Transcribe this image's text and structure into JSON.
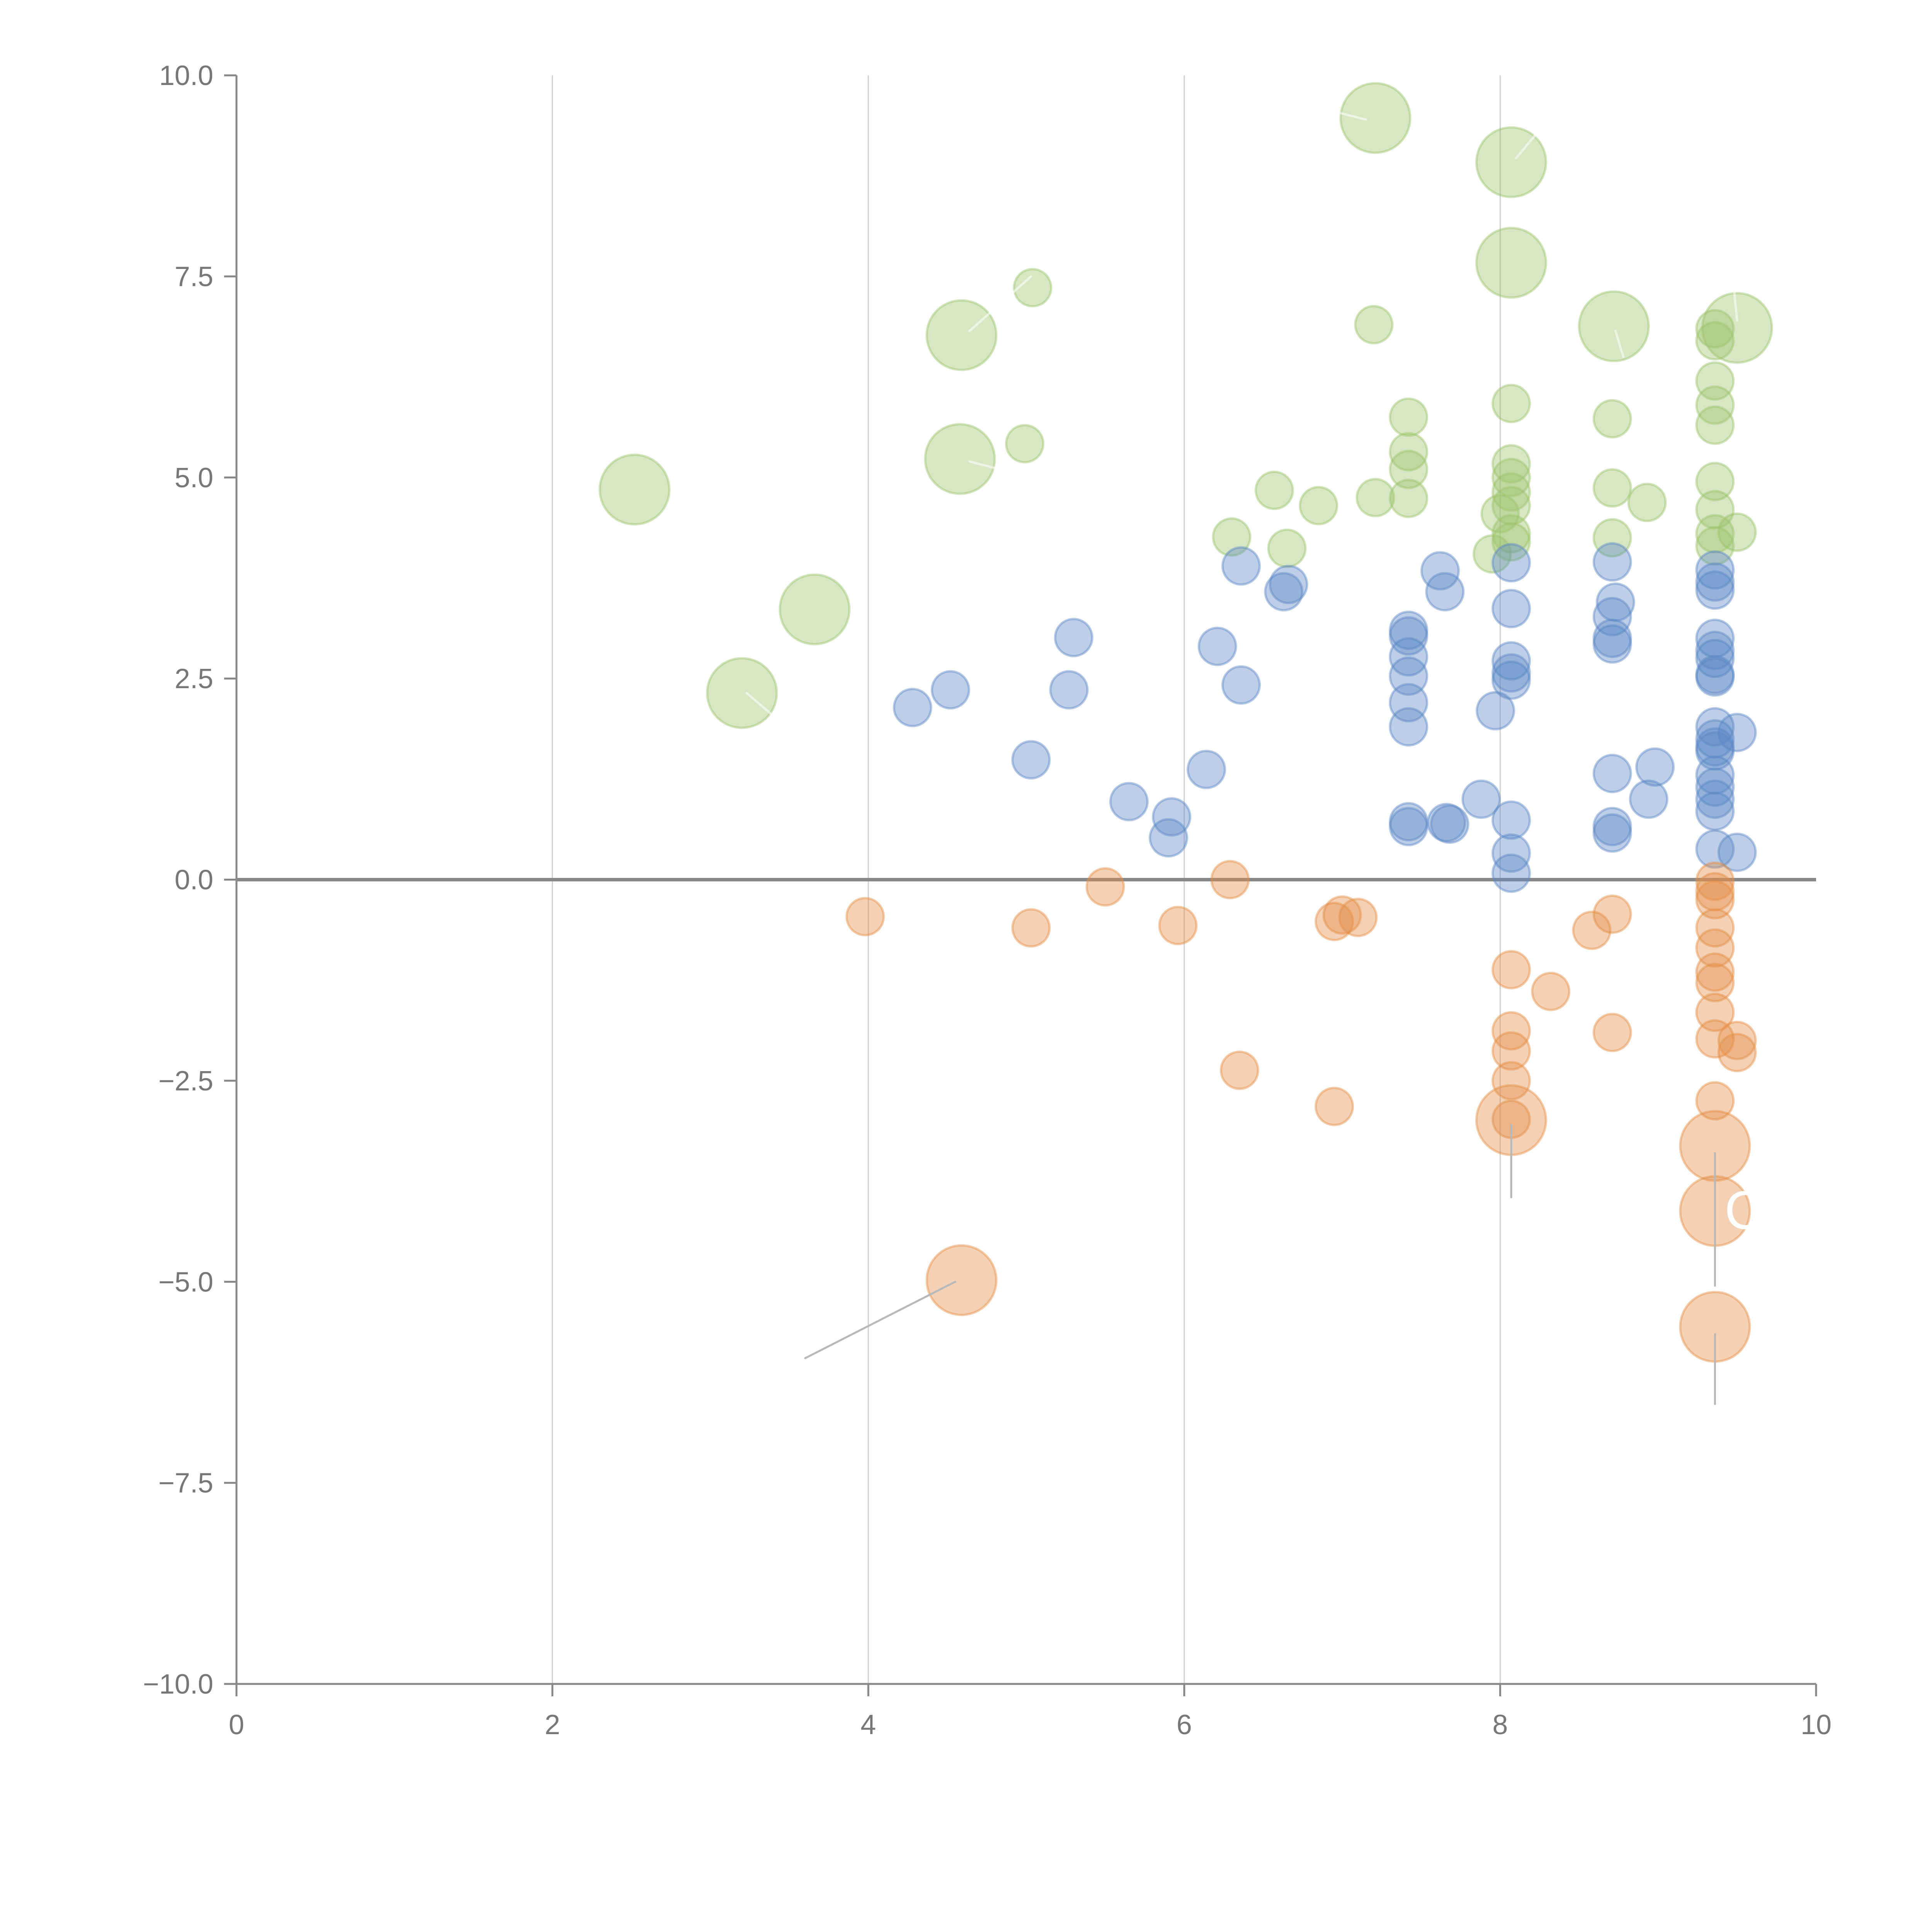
{
  "chart_data": {
    "type": "scatter",
    "title": "",
    "xlabel": "",
    "ylabel": "",
    "xlim": [
      0,
      10
    ],
    "ylim": [
      -10,
      10
    ],
    "x_ticks": [
      "0",
      "2",
      "4",
      "6",
      "8",
      "10"
    ],
    "x_tick_values": [
      0,
      2,
      4,
      6,
      8,
      10
    ],
    "y_ticks": [
      "10.0",
      "7.5",
      "5.0",
      "2.5",
      "0.0",
      "−2.5",
      "−5.0",
      "−7.5",
      "−10.0"
    ],
    "y_tick_values": [
      10,
      7.5,
      5,
      2.5,
      0,
      -2.5,
      -5,
      -7.5,
      -10
    ],
    "grid": "vertical",
    "zero_line": true,
    "legend": "none",
    "colors": {
      "green": "#9cc36b",
      "blue": "#5b87c5",
      "orange": "#e48d45"
    },
    "series": [
      {
        "name": "green",
        "color_key": "green",
        "points": [
          {
            "x": 7.21,
            "y": 9.47,
            "size": 3
          },
          {
            "x": 8.07,
            "y": 8.92,
            "size": 3
          },
          {
            "x": 8.07,
            "y": 7.67,
            "size": 3
          },
          {
            "x": 8.72,
            "y": 6.88,
            "size": 3
          },
          {
            "x": 9.5,
            "y": 6.86,
            "size": 3
          },
          {
            "x": 4.59,
            "y": 6.77,
            "size": 3
          },
          {
            "x": 4.58,
            "y": 5.23,
            "size": 3
          },
          {
            "x": 2.52,
            "y": 4.85,
            "size": 3
          },
          {
            "x": 3.66,
            "y": 3.36,
            "size": 3
          },
          {
            "x": 3.2,
            "y": 2.32,
            "size": 3
          },
          {
            "x": 5.04,
            "y": 7.36,
            "size": 1
          },
          {
            "x": 7.2,
            "y": 6.9,
            "size": 1
          },
          {
            "x": 9.36,
            "y": 6.85,
            "size": 1
          },
          {
            "x": 9.36,
            "y": 6.7,
            "size": 1
          },
          {
            "x": 9.36,
            "y": 6.2,
            "size": 1
          },
          {
            "x": 8.07,
            "y": 5.92,
            "size": 1
          },
          {
            "x": 9.36,
            "y": 5.9,
            "size": 1
          },
          {
            "x": 9.36,
            "y": 5.65,
            "size": 1
          },
          {
            "x": 7.42,
            "y": 5.75,
            "size": 1
          },
          {
            "x": 8.71,
            "y": 5.73,
            "size": 1
          },
          {
            "x": 4.99,
            "y": 5.42,
            "size": 1
          },
          {
            "x": 7.42,
            "y": 5.32,
            "size": 1
          },
          {
            "x": 8.07,
            "y": 5.17,
            "size": 1
          },
          {
            "x": 7.42,
            "y": 5.1,
            "size": 1
          },
          {
            "x": 8.07,
            "y": 5.0,
            "size": 1
          },
          {
            "x": 9.36,
            "y": 4.95,
            "size": 1
          },
          {
            "x": 8.07,
            "y": 4.82,
            "size": 1
          },
          {
            "x": 6.57,
            "y": 4.84,
            "size": 1
          },
          {
            "x": 8.71,
            "y": 4.87,
            "size": 1
          },
          {
            "x": 6.85,
            "y": 4.65,
            "size": 1
          },
          {
            "x": 8.07,
            "y": 4.65,
            "size": 1
          },
          {
            "x": 8.93,
            "y": 4.69,
            "size": 1
          },
          {
            "x": 9.36,
            "y": 4.6,
            "size": 1
          },
          {
            "x": 7.21,
            "y": 4.75,
            "size": 1
          },
          {
            "x": 7.42,
            "y": 4.74,
            "size": 1
          },
          {
            "x": 8.0,
            "y": 4.55,
            "size": 1
          },
          {
            "x": 8.07,
            "y": 4.3,
            "size": 1
          },
          {
            "x": 9.36,
            "y": 4.3,
            "size": 1
          },
          {
            "x": 9.5,
            "y": 4.32,
            "size": 1
          },
          {
            "x": 6.3,
            "y": 4.26,
            "size": 1
          },
          {
            "x": 8.71,
            "y": 4.25,
            "size": 1
          },
          {
            "x": 8.07,
            "y": 4.2,
            "size": 1
          },
          {
            "x": 9.36,
            "y": 4.15,
            "size": 1
          },
          {
            "x": 6.65,
            "y": 4.12,
            "size": 1
          },
          {
            "x": 7.95,
            "y": 4.05,
            "size": 1
          }
        ]
      },
      {
        "name": "blue",
        "color_key": "blue",
        "points": [
          {
            "x": 6.36,
            "y": 3.9,
            "size": 1
          },
          {
            "x": 7.62,
            "y": 3.84,
            "size": 1
          },
          {
            "x": 8.71,
            "y": 3.95,
            "size": 1
          },
          {
            "x": 8.07,
            "y": 3.94,
            "size": 1
          },
          {
            "x": 9.36,
            "y": 3.85,
            "size": 1
          },
          {
            "x": 9.36,
            "y": 3.7,
            "size": 1
          },
          {
            "x": 9.36,
            "y": 3.6,
            "size": 1
          },
          {
            "x": 6.66,
            "y": 3.67,
            "size": 1
          },
          {
            "x": 6.63,
            "y": 3.58,
            "size": 1
          },
          {
            "x": 7.65,
            "y": 3.58,
            "size": 1
          },
          {
            "x": 8.73,
            "y": 3.45,
            "size": 1
          },
          {
            "x": 8.07,
            "y": 3.37,
            "size": 1
          },
          {
            "x": 8.71,
            "y": 3.27,
            "size": 1
          },
          {
            "x": 7.42,
            "y": 3.1,
            "size": 1
          },
          {
            "x": 7.42,
            "y": 3.03,
            "size": 1
          },
          {
            "x": 5.3,
            "y": 3.01,
            "size": 1
          },
          {
            "x": 8.71,
            "y": 3.0,
            "size": 1
          },
          {
            "x": 9.36,
            "y": 3.0,
            "size": 1
          },
          {
            "x": 8.71,
            "y": 2.93,
            "size": 1
          },
          {
            "x": 6.21,
            "y": 2.9,
            "size": 1
          },
          {
            "x": 9.36,
            "y": 2.85,
            "size": 1
          },
          {
            "x": 7.42,
            "y": 2.77,
            "size": 1
          },
          {
            "x": 9.36,
            "y": 2.75,
            "size": 1
          },
          {
            "x": 8.07,
            "y": 2.72,
            "size": 1
          },
          {
            "x": 9.36,
            "y": 2.55,
            "size": 1
          },
          {
            "x": 7.42,
            "y": 2.53,
            "size": 1
          },
          {
            "x": 8.07,
            "y": 2.57,
            "size": 1
          },
          {
            "x": 8.07,
            "y": 2.48,
            "size": 1
          },
          {
            "x": 9.36,
            "y": 2.52,
            "size": 1
          },
          {
            "x": 6.36,
            "y": 2.42,
            "size": 1
          },
          {
            "x": 4.52,
            "y": 2.36,
            "size": 1
          },
          {
            "x": 5.27,
            "y": 2.36,
            "size": 1
          },
          {
            "x": 7.42,
            "y": 2.2,
            "size": 1
          },
          {
            "x": 4.28,
            "y": 2.14,
            "size": 1
          },
          {
            "x": 7.97,
            "y": 2.1,
            "size": 1
          },
          {
            "x": 7.42,
            "y": 1.9,
            "size": 1
          },
          {
            "x": 9.36,
            "y": 1.9,
            "size": 1
          },
          {
            "x": 9.5,
            "y": 1.83,
            "size": 1
          },
          {
            "x": 9.36,
            "y": 1.75,
            "size": 1
          },
          {
            "x": 9.36,
            "y": 1.65,
            "size": 1
          },
          {
            "x": 9.36,
            "y": 1.6,
            "size": 1
          },
          {
            "x": 5.03,
            "y": 1.49,
            "size": 1
          },
          {
            "x": 8.98,
            "y": 1.4,
            "size": 1
          },
          {
            "x": 6.14,
            "y": 1.37,
            "size": 1
          },
          {
            "x": 8.71,
            "y": 1.32,
            "size": 1
          },
          {
            "x": 9.36,
            "y": 1.3,
            "size": 1
          },
          {
            "x": 9.36,
            "y": 1.15,
            "size": 1
          },
          {
            "x": 7.88,
            "y": 1.0,
            "size": 1
          },
          {
            "x": 8.94,
            "y": 1.0,
            "size": 1
          },
          {
            "x": 9.36,
            "y": 1.0,
            "size": 1
          },
          {
            "x": 5.65,
            "y": 0.97,
            "size": 1
          },
          {
            "x": 9.36,
            "y": 0.85,
            "size": 1
          },
          {
            "x": 5.92,
            "y": 0.78,
            "size": 1
          },
          {
            "x": 8.07,
            "y": 0.74,
            "size": 1
          },
          {
            "x": 7.42,
            "y": 0.72,
            "size": 1
          },
          {
            "x": 7.66,
            "y": 0.71,
            "size": 1
          },
          {
            "x": 7.68,
            "y": 0.69,
            "size": 1
          },
          {
            "x": 7.42,
            "y": 0.66,
            "size": 1
          },
          {
            "x": 8.71,
            "y": 0.66,
            "size": 1
          },
          {
            "x": 8.71,
            "y": 0.58,
            "size": 1
          },
          {
            "x": 5.9,
            "y": 0.52,
            "size": 1
          },
          {
            "x": 9.36,
            "y": 0.38,
            "size": 1
          },
          {
            "x": 9.5,
            "y": 0.34,
            "size": 1
          },
          {
            "x": 8.07,
            "y": 0.33,
            "size": 1
          },
          {
            "x": 8.07,
            "y": 0.08,
            "size": 1
          }
        ]
      },
      {
        "name": "orange",
        "color_key": "orange",
        "points": [
          {
            "x": 6.29,
            "y": 0.0,
            "size": 1
          },
          {
            "x": 9.36,
            "y": -0.02,
            "size": 1
          },
          {
            "x": 5.5,
            "y": -0.09,
            "size": 1
          },
          {
            "x": 9.36,
            "y": -0.15,
            "size": 1
          },
          {
            "x": 9.36,
            "y": -0.25,
            "size": 1
          },
          {
            "x": 8.71,
            "y": -0.43,
            "size": 1
          },
          {
            "x": 3.98,
            "y": -0.46,
            "size": 1
          },
          {
            "x": 7.1,
            "y": -0.47,
            "size": 1
          },
          {
            "x": 7.0,
            "y": -0.44,
            "size": 1
          },
          {
            "x": 6.95,
            "y": -0.52,
            "size": 1
          },
          {
            "x": 5.96,
            "y": -0.57,
            "size": 1
          },
          {
            "x": 5.03,
            "y": -0.6,
            "size": 1
          },
          {
            "x": 9.36,
            "y": -0.6,
            "size": 1
          },
          {
            "x": 8.58,
            "y": -0.63,
            "size": 1
          },
          {
            "x": 9.36,
            "y": -0.85,
            "size": 1
          },
          {
            "x": 8.07,
            "y": -1.12,
            "size": 1
          },
          {
            "x": 9.36,
            "y": -1.15,
            "size": 1
          },
          {
            "x": 9.36,
            "y": -1.28,
            "size": 1
          },
          {
            "x": 8.32,
            "y": -1.39,
            "size": 1
          },
          {
            "x": 9.36,
            "y": -1.65,
            "size": 1
          },
          {
            "x": 8.71,
            "y": -1.9,
            "size": 1
          },
          {
            "x": 8.07,
            "y": -1.88,
            "size": 1
          },
          {
            "x": 9.36,
            "y": -1.98,
            "size": 1
          },
          {
            "x": 9.5,
            "y": -2.0,
            "size": 1
          },
          {
            "x": 9.5,
            "y": -2.15,
            "size": 1
          },
          {
            "x": 8.07,
            "y": -2.13,
            "size": 1
          },
          {
            "x": 6.35,
            "y": -2.37,
            "size": 1
          },
          {
            "x": 8.07,
            "y": -2.5,
            "size": 1
          },
          {
            "x": 9.36,
            "y": -2.75,
            "size": 1
          },
          {
            "x": 6.95,
            "y": -2.82,
            "size": 1
          },
          {
            "x": 8.07,
            "y": -2.98,
            "size": 1
          },
          {
            "x": 8.07,
            "y": -2.99,
            "size": 3
          },
          {
            "x": 9.36,
            "y": -3.31,
            "size": 3
          },
          {
            "x": 9.36,
            "y": -4.12,
            "size": 3
          },
          {
            "x": 4.59,
            "y": -4.98,
            "size": 3
          },
          {
            "x": 9.36,
            "y": -5.56,
            "size": 3
          }
        ]
      }
    ],
    "leader_lines": [
      {
        "from": [
          4.55,
          -5.0
        ],
        "to": [
          3.6,
          -5.95
        ],
        "style": "gray"
      },
      {
        "from": [
          8.07,
          -3.05
        ],
        "to": [
          8.07,
          -3.95
        ],
        "style": "gray"
      },
      {
        "from": [
          9.36,
          -3.4
        ],
        "to": [
          9.36,
          -5.05
        ],
        "style": "gray"
      },
      {
        "from": [
          9.36,
          -5.65
        ],
        "to": [
          9.36,
          -6.52
        ],
        "style": "gray"
      },
      {
        "from": [
          7.15,
          9.45
        ],
        "to": [
          6.95,
          9.55
        ],
        "style": "white"
      },
      {
        "from": [
          8.1,
          8.97
        ],
        "to": [
          8.22,
          9.25
        ],
        "style": "white"
      },
      {
        "from": [
          8.73,
          6.82
        ],
        "to": [
          8.78,
          6.5
        ],
        "style": "white"
      },
      {
        "from": [
          9.5,
          6.95
        ],
        "to": [
          9.48,
          7.35
        ],
        "style": "white"
      },
      {
        "from": [
          4.64,
          6.82
        ],
        "to": [
          5.03,
          7.5
        ],
        "style": "white"
      },
      {
        "from": [
          4.64,
          5.2
        ],
        "to": [
          4.93,
          5.05
        ],
        "style": "white"
      },
      {
        "from": [
          3.23,
          2.32
        ],
        "to": [
          3.42,
          2.0
        ],
        "style": "white"
      }
    ],
    "annotations": [
      {
        "text": "C",
        "x": 9.42,
        "y": -4.1,
        "color": "white"
      }
    ]
  }
}
